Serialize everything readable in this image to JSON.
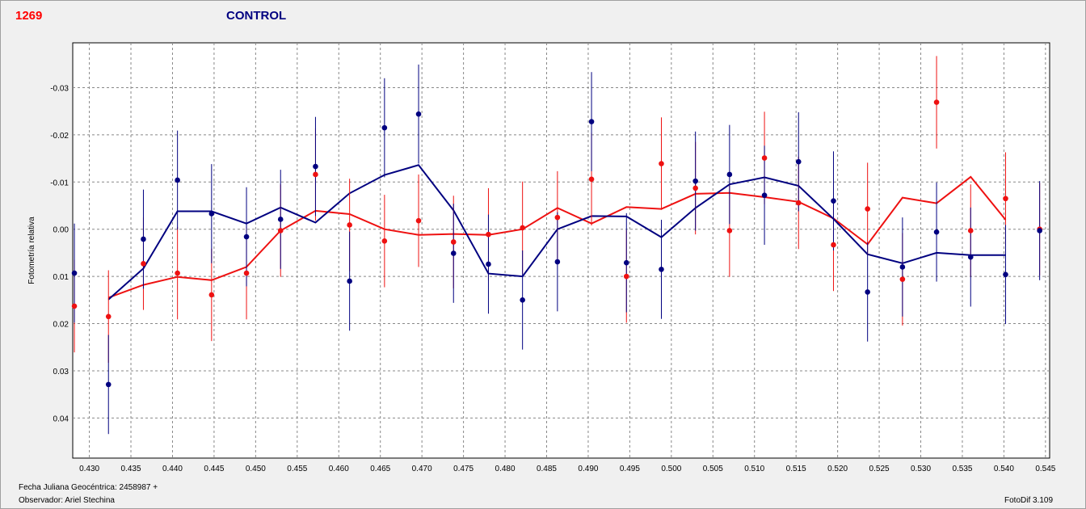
{
  "header": {
    "number": "1269",
    "title": "CONTROL"
  },
  "footer": {
    "date_label": "Fecha Juliana Geocéntrica: 2458987 +",
    "observer": "Observador: Ariel Stechina",
    "software": "FotoDif 3.109"
  },
  "colors": {
    "red_series": "#ee1111",
    "blue_series": "#000080",
    "grid": "#888888"
  },
  "chart_data": {
    "type": "scatter",
    "title": "",
    "xlabel": "",
    "ylabel": "Fotometría relativa",
    "xlim": [
      0.428,
      0.5455
    ],
    "ylim": [
      0.0485,
      -0.0395
    ],
    "y_inverted": true,
    "grid": true,
    "x_ticks": [
      0.43,
      0.435,
      0.44,
      0.445,
      0.45,
      0.455,
      0.46,
      0.465,
      0.47,
      0.475,
      0.48,
      0.485,
      0.49,
      0.495,
      0.5,
      0.505,
      0.51,
      0.515,
      0.52,
      0.525,
      0.53,
      0.535,
      0.54,
      0.545
    ],
    "x_tick_labels": [
      "0.430",
      "0.435",
      "0.440",
      "0.445",
      "0.450",
      "0.455",
      "0.460",
      "0.465",
      "0.470",
      "0.475",
      "0.480",
      "0.485",
      "0.490",
      "0.495",
      "0.500",
      "0.505",
      "0.510",
      "0.515",
      "0.520",
      "0.525",
      "0.530",
      "0.535",
      "0.540",
      "0.545"
    ],
    "y_ticks": [
      -0.03,
      -0.02,
      -0.01,
      0.0,
      0.01,
      0.02,
      0.03,
      0.04
    ],
    "y_tick_labels": [
      "-0.03",
      "-0.02",
      "-0.01",
      "0.00",
      "0.01",
      "0.02",
      "0.03",
      "0.04"
    ],
    "x": [
      0.4282,
      0.4323,
      0.4365,
      0.4406,
      0.4447,
      0.4489,
      0.453,
      0.4572,
      0.4613,
      0.4655,
      0.4696,
      0.4738,
      0.478,
      0.4821,
      0.4863,
      0.4904,
      0.4946,
      0.4988,
      0.5029,
      0.507,
      0.5112,
      0.5153,
      0.5195,
      0.5236,
      0.5278,
      0.5319,
      0.536,
      0.5402,
      0.5443
    ],
    "series": [
      {
        "color": "#ee1111",
        "points": [
          0.0163,
          0.0185,
          0.0073,
          0.0093,
          0.0139,
          0.0093,
          0.0003,
          -0.0116,
          -0.0009,
          0.0025,
          -0.0018,
          0.0027,
          0.0011,
          -0.0003,
          -0.0025,
          -0.0106,
          0.01,
          -0.0139,
          -0.0087,
          0.0003,
          -0.0151,
          -0.0056,
          0.0033,
          -0.0043,
          0.0106,
          -0.0269,
          0.0003,
          -0.0065,
          0.0
        ],
        "error": [
          0.0098,
          0.0098,
          0.0098,
          0.0098,
          0.0098,
          0.0098,
          0.0098,
          0.0098,
          0.0098,
          0.0098,
          0.0098,
          0.0098,
          0.0098,
          0.0098,
          0.0098,
          0.0098,
          0.0098,
          0.0098,
          0.0098,
          0.0098,
          0.0098,
          0.0098,
          0.0098,
          0.0098,
          0.0098,
          0.0098,
          0.0098,
          0.0098,
          0.0098
        ],
        "trend_x": [
          0.4323,
          0.4365,
          0.4406,
          0.4447,
          0.4489,
          0.453,
          0.4572,
          0.4613,
          0.4655,
          0.4696,
          0.4738,
          0.478,
          0.4821,
          0.4863,
          0.4904,
          0.4946,
          0.4988,
          0.5029,
          0.507,
          0.5112,
          0.5153,
          0.5195,
          0.5236,
          0.5278,
          0.5319,
          0.536,
          0.5402
        ],
        "trend_y": [
          0.0145,
          0.0118,
          0.0101,
          0.0108,
          0.008,
          0.0003,
          -0.0039,
          -0.0032,
          0.0,
          0.0012,
          0.001,
          0.0012,
          0.0,
          -0.0045,
          -0.0012,
          -0.0047,
          -0.0043,
          -0.0075,
          -0.0077,
          -0.0068,
          -0.0058,
          -0.0023,
          0.0032,
          -0.0067,
          -0.0055,
          -0.0111,
          -0.002
        ]
      },
      {
        "color": "#000080",
        "points": [
          0.0093,
          0.0329,
          0.0021,
          -0.0104,
          -0.0033,
          0.0016,
          -0.0021,
          -0.0133,
          0.011,
          -0.0215,
          -0.0244,
          0.0051,
          0.0074,
          0.015,
          0.0069,
          -0.0228,
          0.0071,
          0.0085,
          -0.0102,
          -0.0116,
          -0.0072,
          -0.0143,
          -0.006,
          0.0133,
          0.008,
          0.0006,
          0.0059,
          0.0096,
          0.0003
        ],
        "error": [
          0.0105,
          0.0105,
          0.0105,
          0.0105,
          0.0105,
          0.0105,
          0.0105,
          0.0105,
          0.0105,
          0.0105,
          0.0105,
          0.0105,
          0.0105,
          0.0105,
          0.0105,
          0.0105,
          0.0105,
          0.0105,
          0.0105,
          0.0105,
          0.0105,
          0.0105,
          0.0105,
          0.0105,
          0.0105,
          0.0105,
          0.0105,
          0.0105,
          0.0105
        ],
        "trend_x": [
          0.4323,
          0.4365,
          0.4406,
          0.4447,
          0.4489,
          0.453,
          0.4572,
          0.4613,
          0.4655,
          0.4696,
          0.4738,
          0.478,
          0.4821,
          0.4863,
          0.4904,
          0.4946,
          0.4988,
          0.5029,
          0.507,
          0.5112,
          0.5153,
          0.5195,
          0.5236,
          0.5278,
          0.5319,
          0.536,
          0.5402
        ],
        "trend_y": [
          0.0149,
          0.0083,
          -0.0038,
          -0.0038,
          -0.0012,
          -0.0046,
          -0.0014,
          -0.0076,
          -0.0115,
          -0.0136,
          -0.004,
          0.0094,
          0.01,
          0.0,
          -0.0028,
          -0.0027,
          0.0017,
          -0.0045,
          -0.0095,
          -0.011,
          -0.0092,
          -0.0022,
          0.0053,
          0.0072,
          0.005,
          0.0055,
          0.0055
        ]
      }
    ]
  }
}
